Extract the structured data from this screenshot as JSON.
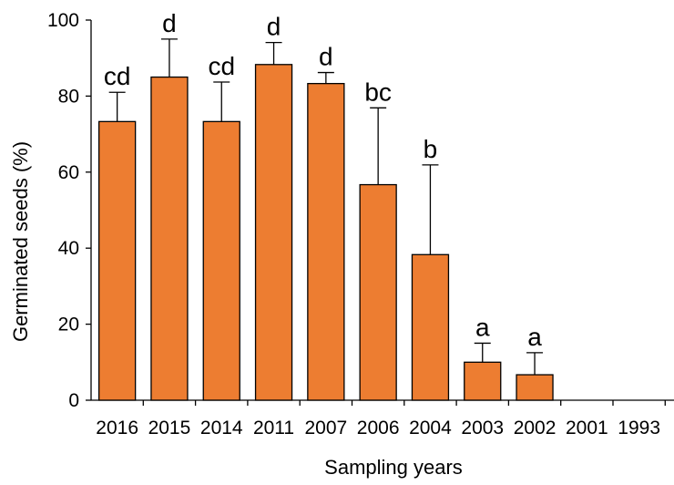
{
  "chart_data": {
    "type": "bar",
    "categories": [
      "2016",
      "2015",
      "2014",
      "2011",
      "2007",
      "2006",
      "2004",
      "2003",
      "2002",
      "2001",
      "1993"
    ],
    "values": [
      73.3,
      85.0,
      73.3,
      88.3,
      83.3,
      56.7,
      38.3,
      10.0,
      6.7,
      0,
      0
    ],
    "error_upper": [
      7.7,
      10.0,
      10.4,
      5.8,
      2.9,
      20.2,
      23.6,
      5.0,
      5.8,
      0,
      0
    ],
    "significance_letters": [
      "cd",
      "d",
      "cd",
      "d",
      "d",
      "bc",
      "b",
      "a",
      "a",
      "",
      ""
    ],
    "xlabel": "Sampling years",
    "ylabel": "Germinated seeds (%)",
    "ylim": [
      0,
      100
    ],
    "yticks": [
      "0",
      "20",
      "40",
      "60",
      "80",
      "100"
    ],
    "bar_color": "#ED7D31",
    "bar_edge_color": "#000000",
    "grid": false,
    "legend": "none"
  }
}
